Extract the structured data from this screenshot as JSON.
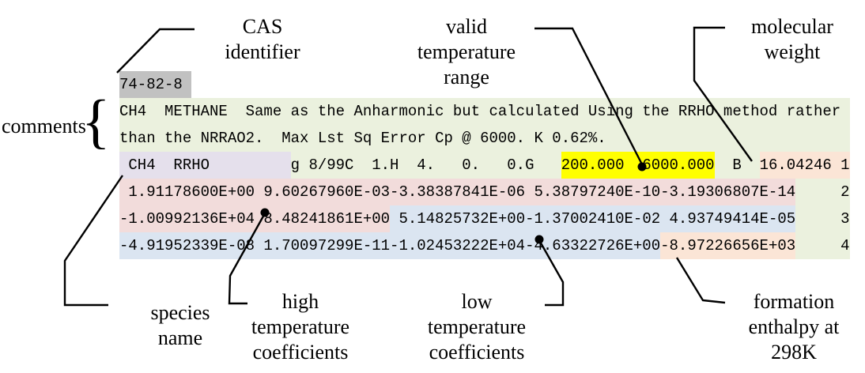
{
  "palette": {
    "cas_bg": "#c1c1c1",
    "comment_bg": "#ebf1de",
    "species_bg": "#e5e0ec",
    "temp_range_bg": "#ffff00",
    "high_temp_bg": "#f2dcdb",
    "low_temp_bg": "#dbe5f1",
    "enthalpy_bg": "#fbe5d6"
  },
  "annotations": {
    "cas": {
      "label": "CAS\nidentifier"
    },
    "valid_range": {
      "label": "valid\ntemperature\nrange"
    },
    "molecular_weight": {
      "label": "molecular\nweight"
    },
    "comments": {
      "label": "comments",
      "brace": "{"
    },
    "species": {
      "label": "species\nname"
    },
    "high_coeffs": {
      "label": "high\ntemperature\ncoefficients"
    },
    "low_coeffs": {
      "label": "low\ntemperature\ncoefficients"
    },
    "formation_enthalpy": {
      "label": "formation\nenthalpy at\n298K"
    }
  },
  "record": {
    "cas_number": "74-82-8",
    "species_name": "CH4",
    "method": "RRHO",
    "temperature_range_low": "200.000",
    "temperature_range_high": "6000.000",
    "molecular_weight": "16.04246",
    "formation_enthalpy_298K": "-8.97226656E+03",
    "lines": [
      {
        "segments": [
          {
            "name": "cas-number",
            "bg": "gray",
            "text": "74-82-8 "
          }
        ]
      },
      {
        "segments": [
          {
            "name": "comment-line-1",
            "bg": "green",
            "text": "CH4  METHANE  Same as the Anharmonic but calculated Using the RRHO method rather "
          }
        ]
      },
      {
        "segments": [
          {
            "name": "comment-line-2",
            "bg": "green",
            "text": "than the NRRAO2.  Max Lst Sq Error Cp @ 6000. K 0.62%.                           "
          }
        ]
      },
      {
        "segments": [
          {
            "name": "species-name-field",
            "bg": "lavender",
            "text": " CH4  RRHO         "
          },
          {
            "name": "date-and-composition-field",
            "bg": "green",
            "text": "g 8/99C  1.H  4.   0.   0.G   "
          },
          {
            "name": "temperature-range-field",
            "bg": "yellow",
            "text": "200.000  6000.000"
          },
          {
            "name": "b-flag-field",
            "bg": "green",
            "text": "  B  "
          },
          {
            "name": "molecular-weight-field",
            "bg": "peach",
            "text": "16.04246 1"
          }
        ]
      },
      {
        "segments": [
          {
            "name": "high-temp-coefficients",
            "bg": "pink",
            "text": " 1.91178600E+00 9.60267960E-03-3.38387841E-06 5.38797240E-10-3.19306807E-14"
          },
          {
            "name": "line-number",
            "bg": "green",
            "text": "     2"
          }
        ]
      },
      {
        "segments": [
          {
            "name": "high-temp-coefficients-cont",
            "bg": "pink",
            "text": "-1.00992136E+04 8.48241861E+00"
          },
          {
            "name": "low-temp-coefficients",
            "bg": "blue",
            "text": " 5.14825732E+00-1.37002410E-02 4.93749414E-05"
          },
          {
            "name": "line-number",
            "bg": "green",
            "text": "     3"
          }
        ]
      },
      {
        "segments": [
          {
            "name": "low-temp-coefficients-cont",
            "bg": "blue",
            "text": "-4.91952339E-08 1.70097299E-11-1.02453222E+04-4.63322726E+00"
          },
          {
            "name": "formation-enthalpy-field",
            "bg": "peach",
            "text": "-8.97226656E+03"
          },
          {
            "name": "line-number",
            "bg": "green",
            "text": "     4"
          }
        ]
      }
    ]
  }
}
